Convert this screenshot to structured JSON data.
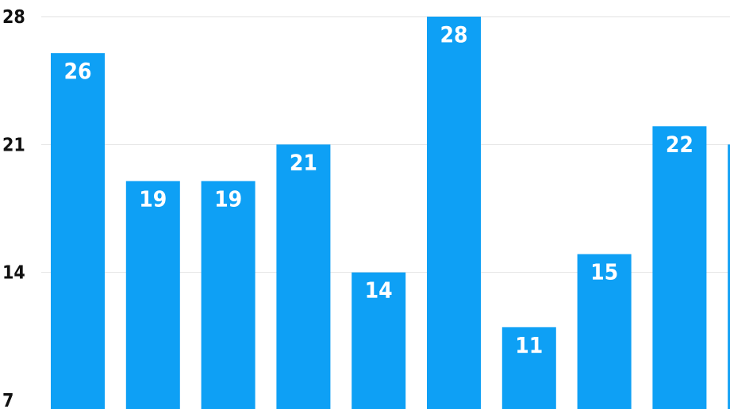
{
  "chart_data": {
    "type": "bar",
    "title": "",
    "xlabel": "",
    "ylabel": "",
    "categories": [
      "",
      "",
      "",
      "",
      "",
      "",
      "",
      "",
      "",
      ""
    ],
    "values": [
      26,
      19,
      19,
      21,
      14,
      28,
      11,
      15,
      22,
      21
    ],
    "ylim": [
      7,
      28
    ],
    "yticks": [
      7,
      14,
      21,
      28
    ],
    "data_labels": [
      "26",
      "19",
      "19",
      "21",
      "14",
      "28",
      "11",
      "15",
      "22",
      ""
    ],
    "tick_labels": [
      "7",
      "14",
      "21",
      "28"
    ],
    "grid": true,
    "legend": "none",
    "colors": {
      "bar": "#0ea0f5",
      "label": "#ffffff",
      "grid": "#e2e2e2",
      "axis_text": "#111111"
    }
  }
}
